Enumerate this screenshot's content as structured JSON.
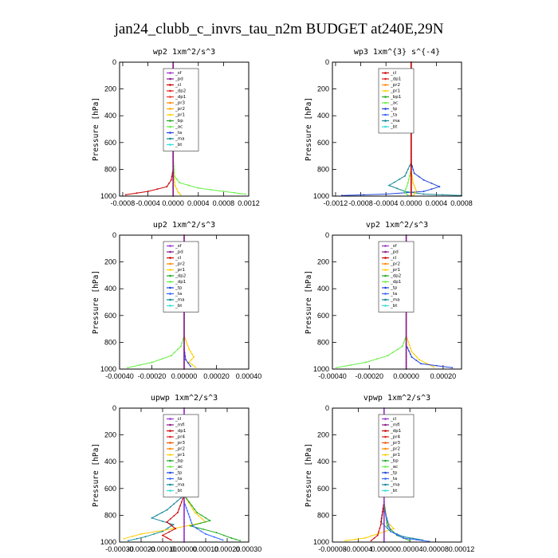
{
  "figure": {
    "title": "jan24_clubb_c_invrs_tau_n2m  BUDGET at240E,29N"
  },
  "chart_data": [
    {
      "id": "wp2",
      "type": "line",
      "title": "wp2  1xm^2/s^3",
      "ylabel": "Pressure [hPa]",
      "xlim": [
        -0.00085,
        0.0012
      ],
      "ylim": [
        1000,
        0
      ],
      "xticks": [
        -0.0008,
        -0.0004,
        0,
        0.0004,
        0.0008,
        0.0012
      ],
      "xtick_labels": [
        "-0.0008",
        "-0.0004",
        "0.0000",
        "0.0004",
        "0.0008",
        "0.0012"
      ],
      "yticks": [
        0,
        200,
        400,
        600,
        800,
        1000
      ],
      "ytick_labels": [
        "0",
        "200",
        "400",
        "600",
        "800",
        "1000"
      ],
      "legend": [
        "_sf",
        "_pd",
        "_cl",
        "_dp2",
        "_dp1",
        "_pr3",
        "_pr2",
        "_pr1",
        "_bp",
        "_ac",
        "_ta",
        "_ma",
        "_bt"
      ],
      "legend_colors": [
        "#9933cc",
        "#8b1a8b",
        "#cc0000",
        "#dd2222",
        "#ee3333",
        "#ff8800",
        "#ffaa00",
        "#ffd000",
        "#22aa22",
        "#66ee44",
        "#2244dd",
        "#118899",
        "#33dddd"
      ],
      "series": [
        {
          "name": "_bp",
          "color": "#66ee44",
          "values": [
            [
              0,
              0
            ],
            [
              0,
              700
            ],
            [
              2e-05,
              850
            ],
            [
              0.0001,
              900
            ],
            [
              0.0004,
              940
            ],
            [
              0.0008,
              965
            ],
            [
              0.00115,
              985
            ]
          ]
        },
        {
          "name": "_pr1",
          "color": "#ffcc00",
          "values": [
            [
              0,
              0
            ],
            [
              0,
              800
            ],
            [
              3e-05,
              920
            ],
            [
              8e-05,
              970
            ],
            [
              0.00012,
              990
            ]
          ]
        },
        {
          "name": "_dp1",
          "color": "#cc0000",
          "values": [
            [
              0,
              0
            ],
            [
              0,
              800
            ],
            [
              -3e-05,
              880
            ],
            [
              -0.0001,
              930
            ],
            [
              -0.0004,
              965
            ],
            [
              -0.00075,
              990
            ]
          ]
        },
        {
          "name": "_pd",
          "color": "#8b1a8b",
          "values": [
            [
              0,
              0
            ],
            [
              0,
              1000
            ]
          ]
        }
      ]
    },
    {
      "id": "wp3",
      "type": "line",
      "title": "wp3  1xm^{3} s^{-4}",
      "ylabel": "Pressure [hPa]",
      "xlim": [
        -0.00125,
        0.0008
      ],
      "ylim": [
        1000,
        0
      ],
      "xticks": [
        -0.0012,
        -0.0008,
        -0.0004,
        0,
        0.0004,
        0.0008
      ],
      "xtick_labels": [
        "-0.0012",
        "-0.0008",
        "-0.0004",
        "0.0000",
        "0.0004",
        "0.0008"
      ],
      "yticks": [
        0,
        200,
        400,
        600,
        800,
        1000
      ],
      "ytick_labels": [
        "0",
        "200",
        "400",
        "600",
        "800",
        "1000"
      ],
      "legend": [
        "_cl",
        "_dp1",
        "_pr2",
        "_pr1",
        "_bp1",
        "_ac",
        "_tp",
        "_ta",
        "_ma",
        "_bt"
      ],
      "legend_colors": [
        "#cc0000",
        "#dd2222",
        "#ff8800",
        "#ffd000",
        "#22aa22",
        "#66ee44",
        "#2244dd",
        "#3366ff",
        "#118899",
        "#33dddd"
      ],
      "series": [
        {
          "name": "_ta",
          "color": "#2244dd",
          "values": [
            [
              0,
              0
            ],
            [
              0,
              750
            ],
            [
              5e-05,
              830
            ],
            [
              0.0002,
              880
            ],
            [
              0.00045,
              930
            ],
            [
              0.0002,
              965
            ],
            [
              -0.0004,
              985
            ],
            [
              -0.0011,
              995
            ]
          ]
        },
        {
          "name": "_ma",
          "color": "#118899",
          "values": [
            [
              0,
              750
            ],
            [
              -0.0001,
              850
            ],
            [
              -0.00035,
              920
            ],
            [
              -0.0001,
              965
            ],
            [
              0.0002,
              985
            ],
            [
              0.0008,
              995
            ]
          ]
        },
        {
          "name": "_ac",
          "color": "#66ee44",
          "values": [
            [
              0,
              800
            ],
            [
              -5e-05,
              900
            ],
            [
              -0.0001,
              970
            ],
            [
              -5e-05,
              995
            ]
          ]
        },
        {
          "name": "_pr1",
          "color": "#ffcc00",
          "values": [
            [
              0,
              800
            ],
            [
              3e-05,
              900
            ],
            [
              8e-05,
              960
            ],
            [
              4e-05,
              995
            ]
          ]
        },
        {
          "name": "_cl",
          "color": "#cc0000",
          "values": [
            [
              0,
              0
            ],
            [
              0,
              1000
            ]
          ]
        }
      ]
    },
    {
      "id": "up2",
      "type": "line",
      "title": "up2  1xm^2/s^3",
      "ylabel": "Pressure [hPa]",
      "xlim": [
        -0.0004,
        0.0004
      ],
      "ylim": [
        1000,
        0
      ],
      "xticks": [
        -0.0004,
        -0.0002,
        0,
        0.0002,
        0.0004
      ],
      "xtick_labels": [
        "-0.00040",
        "-0.00020",
        "0.00000",
        "0.00020",
        "0.00040"
      ],
      "yticks": [
        0,
        200,
        400,
        600,
        800,
        1000
      ],
      "ytick_labels": [
        "0",
        "200",
        "400",
        "600",
        "800",
        "1000"
      ],
      "legend": [
        "_sf",
        "_pd",
        "_cl",
        "_pr2",
        "_pr1",
        "_dp2",
        "_dp1",
        "_tp",
        "_ta",
        "_ma",
        "_bt"
      ],
      "legend_colors": [
        "#9933cc",
        "#8b1a8b",
        "#cc0000",
        "#ff8800",
        "#ffd000",
        "#22aa22",
        "#66ee44",
        "#2244dd",
        "#3366ff",
        "#118899",
        "#33dddd"
      ],
      "series": [
        {
          "name": "_dp1",
          "color": "#66ee44",
          "values": [
            [
              0,
              0
            ],
            [
              0,
              750
            ],
            [
              -2e-05,
              830
            ],
            [
              -8e-05,
              900
            ],
            [
              -0.0002,
              950
            ],
            [
              -0.00035,
              990
            ]
          ]
        },
        {
          "name": "_pr1",
          "color": "#ffcc00",
          "values": [
            [
              0,
              750
            ],
            [
              3e-05,
              850
            ],
            [
              6e-05,
              910
            ],
            [
              3e-05,
              950
            ],
            [
              7e-05,
              985
            ]
          ]
        },
        {
          "name": "_tp",
          "color": "#2244dd",
          "values": [
            [
              0,
              850
            ],
            [
              1e-05,
              930
            ],
            [
              4e-05,
              980
            ]
          ]
        },
        {
          "name": "_pd",
          "color": "#8b1a8b",
          "values": [
            [
              0,
              0
            ],
            [
              0,
              1000
            ]
          ]
        }
      ]
    },
    {
      "id": "vp2",
      "type": "line",
      "title": "vp2  1xm^2/s^3",
      "ylabel": "Pressure [hPa]",
      "xlim": [
        -0.0004,
        0.0003
      ],
      "ylim": [
        1000,
        0
      ],
      "xticks": [
        -0.0004,
        -0.0002,
        0,
        0.0002
      ],
      "xtick_labels": [
        "-0.00040",
        "-0.00020",
        "0.00000",
        "0.00020"
      ],
      "yticks": [
        0,
        200,
        400,
        600,
        800,
        1000
      ],
      "ytick_labels": [
        "0",
        "200",
        "400",
        "600",
        "800",
        "1000"
      ],
      "legend": [
        "_sf",
        "_pd",
        "_cl",
        "_pr2",
        "_pr1",
        "_dp2",
        "_dp1",
        "_tp",
        "_ta",
        "_ma",
        "_bt"
      ],
      "legend_colors": [
        "#9933cc",
        "#8b1a8b",
        "#cc0000",
        "#ff8800",
        "#ffd000",
        "#22aa22",
        "#66ee44",
        "#2244dd",
        "#3366ff",
        "#118899",
        "#33dddd"
      ],
      "series": [
        {
          "name": "_dp1",
          "color": "#66ee44",
          "values": [
            [
              0,
              0
            ],
            [
              0,
              750
            ],
            [
              -2e-05,
              830
            ],
            [
              -0.0001,
              900
            ],
            [
              -0.00022,
              950
            ],
            [
              -0.00038,
              990
            ]
          ]
        },
        {
          "name": "_pr1",
          "color": "#ffcc00",
          "values": [
            [
              0,
              750
            ],
            [
              3e-05,
              870
            ],
            [
              7e-05,
              930
            ],
            [
              0.00015,
              985
            ]
          ]
        },
        {
          "name": "_tp",
          "color": "#2244dd",
          "values": [
            [
              0,
              820
            ],
            [
              3e-05,
              910
            ],
            [
              8e-05,
              960
            ],
            [
              0.00025,
              990
            ]
          ]
        },
        {
          "name": "_pd",
          "color": "#8b1a8b",
          "values": [
            [
              0,
              0
            ],
            [
              0,
              1000
            ]
          ]
        }
      ]
    },
    {
      "id": "upwp",
      "type": "line",
      "title": "upwp  1xm^2/s^3",
      "ylabel": "Pressure [hPa]",
      "xlim": [
        -0.0003,
        0.0003
      ],
      "ylim": [
        1000,
        0
      ],
      "xticks": [
        -0.0003,
        -0.0002,
        -0.0001,
        0,
        0.0001,
        0.0002,
        0.0003
      ],
      "xtick_labels": [
        "-0.00030",
        "-0.00020",
        "-0.00010",
        "0.00000",
        "0.00010",
        "0.00020",
        "0.00030"
      ],
      "yticks": [
        0,
        200,
        400,
        600,
        800,
        1000
      ],
      "ytick_labels": [
        "0",
        "200",
        "400",
        "600",
        "800",
        "1000"
      ],
      "legend": [
        "_cl",
        "_mfl",
        "_dp1",
        "_pr4",
        "_pr3",
        "_pr2",
        "_pr1",
        "_bp",
        "_ac",
        "_tp",
        "_ta",
        "_ma",
        "_bt"
      ],
      "legend_colors": [
        "#9933cc",
        "#8b1a8b",
        "#cc0000",
        "#dd2222",
        "#ee5500",
        "#ff8800",
        "#ffd000",
        "#22aa22",
        "#66ee44",
        "#2244dd",
        "#3366ff",
        "#118899",
        "#33dddd"
      ],
      "series": [
        {
          "name": "_ma",
          "color": "#118899",
          "values": [
            [
              0,
              0
            ],
            [
              0,
              650
            ],
            [
              -8e-05,
              760
            ],
            [
              -0.00015,
              820
            ],
            [
              -5e-05,
              870
            ],
            [
              -0.0001,
              920
            ],
            [
              -0.00018,
              960
            ],
            [
              -0.00026,
              990
            ]
          ]
        },
        {
          "name": "_pr1",
          "color": "#ffcc00",
          "values": [
            [
              0,
              80
            ],
            [
              -3e-05,
              110
            ],
            [
              0,
              150
            ],
            [
              0,
              650
            ],
            [
              5e-05,
              780
            ],
            [
              0.0001,
              850
            ],
            [
              -5e-05,
              900
            ],
            [
              -0.0002,
              940
            ],
            [
              -0.00028,
              975
            ]
          ]
        },
        {
          "name": "_bp",
          "color": "#22aa22",
          "values": [
            [
              0,
              650
            ],
            [
              6e-05,
              780
            ],
            [
              0.00012,
              840
            ],
            [
              3e-05,
              880
            ],
            [
              0.00015,
              930
            ],
            [
              0.00022,
              970
            ],
            [
              0.00026,
              990
            ]
          ]
        },
        {
          "name": "_dp1",
          "color": "#cc0000",
          "values": [
            [
              0,
              650
            ],
            [
              -3e-05,
              780
            ],
            [
              -8e-05,
              850
            ],
            [
              -4e-05,
              900
            ],
            [
              -0.0001,
              950
            ],
            [
              -6e-05,
              985
            ]
          ]
        },
        {
          "name": "_tp",
          "color": "#3366ff",
          "values": [
            [
              0,
              700
            ],
            [
              4e-05,
              880
            ],
            [
              0.0001,
              940
            ],
            [
              0.00018,
              985
            ]
          ]
        },
        {
          "name": "_cl",
          "color": "#9933cc",
          "values": [
            [
              0,
              0
            ],
            [
              0,
              1000
            ]
          ]
        }
      ]
    },
    {
      "id": "vpwp",
      "type": "line",
      "title": "vpwp  1xm^2/s^3",
      "ylabel": "Pressure [hPa]",
      "xlim": [
        -8e-05,
        0.00012
      ],
      "ylim": [
        1000,
        0
      ],
      "xticks": [
        -8e-05,
        -4e-05,
        0,
        4e-05,
        8e-05,
        0.00012
      ],
      "xtick_labels": [
        "-0.00008",
        "-0.00004",
        "0.00000",
        "0.00004",
        "0.00008",
        "0.00012"
      ],
      "yticks": [
        0,
        200,
        400,
        600,
        800,
        1000
      ],
      "ytick_labels": [
        "0",
        "200",
        "400",
        "600",
        "800",
        "1000"
      ],
      "legend": [
        "_cl",
        "_mfl",
        "_dp1",
        "_pr4",
        "_pr3",
        "_pr2",
        "_pr1",
        "_bp",
        "_ac",
        "_tp",
        "_ta",
        "_ma",
        "_bt"
      ],
      "legend_colors": [
        "#9933cc",
        "#8b1a8b",
        "#cc0000",
        "#dd2222",
        "#ee5500",
        "#ff8800",
        "#ffd000",
        "#22aa22",
        "#66ee44",
        "#2244dd",
        "#3366ff",
        "#118899",
        "#33dddd"
      ],
      "series": [
        {
          "name": "_pr1",
          "color": "#ffcc00",
          "values": [
            [
              0,
              0
            ],
            [
              0,
              700
            ],
            [
              5e-06,
              850
            ],
            [
              1.5e-05,
              900
            ],
            [
              -1e-05,
              940
            ],
            [
              -3e-05,
              970
            ],
            [
              -6e-05,
              990
            ]
          ]
        },
        {
          "name": "_ma",
          "color": "#118899",
          "values": [
            [
              0,
              700
            ],
            [
              -5e-06,
              850
            ],
            [
              1e-05,
              920
            ],
            [
              3e-05,
              960
            ],
            [
              6e-05,
              985
            ]
          ]
        },
        {
          "name": "_bp",
          "color": "#22aa22",
          "values": [
            [
              0,
              700
            ],
            [
              5e-06,
              880
            ],
            [
              2e-05,
              950
            ],
            [
              4e-05,
              990
            ]
          ]
        },
        {
          "name": "_tp",
          "color": "#3366ff",
          "values": [
            [
              0,
              750
            ],
            [
              1e-05,
              920
            ],
            [
              3e-05,
              970
            ],
            [
              7e-05,
              995
            ]
          ]
        },
        {
          "name": "_dp1",
          "color": "#cc0000",
          "values": [
            [
              0,
              700
            ],
            [
              -5e-06,
              870
            ],
            [
              -1e-05,
              950
            ],
            [
              -2e-05,
              990
            ]
          ]
        },
        {
          "name": "_cl",
          "color": "#9933cc",
          "values": [
            [
              0,
              0
            ],
            [
              0,
              1000
            ]
          ]
        }
      ]
    }
  ]
}
